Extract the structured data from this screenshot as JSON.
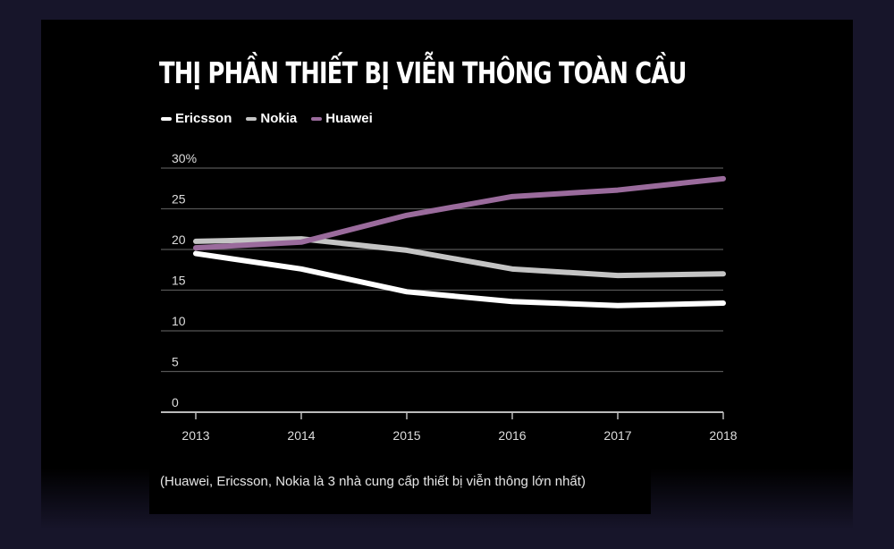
{
  "chart_data": {
    "type": "line",
    "title": "THỊ PHẦN THIẾT BỊ VIỄN THÔNG TOÀN CẦU",
    "xlabel": "",
    "ylabel": "",
    "x": [
      2013,
      2014,
      2015,
      2016,
      2017,
      2018
    ],
    "x_tick_labels": [
      "2013",
      "2014",
      "2015",
      "2016",
      "2017",
      "2018"
    ],
    "y_tick_labels": [
      "0",
      "5",
      "10",
      "15",
      "20",
      "25",
      "30%"
    ],
    "y_ticks": [
      0,
      5,
      10,
      15,
      20,
      25,
      30
    ],
    "ylim": [
      0,
      30
    ],
    "grid": true,
    "legend_placement": "top-left",
    "series": [
      {
        "name": "Ericsson",
        "color": "#ffffff",
        "values": [
          19.5,
          17.6,
          14.8,
          13.6,
          13.1,
          13.4
        ]
      },
      {
        "name": "Nokia",
        "color": "#c4c4c4",
        "values": [
          21.0,
          21.3,
          19.9,
          17.6,
          16.8,
          17.0
        ]
      },
      {
        "name": "Huawei",
        "color": "#9a6b9c",
        "values": [
          20.2,
          20.9,
          24.2,
          26.5,
          27.3,
          28.7
        ]
      }
    ],
    "caption": "(Huawei, Ericsson, Nokia là 3 nhà cung cấp thiết bị viễn thông lớn nhất)"
  }
}
